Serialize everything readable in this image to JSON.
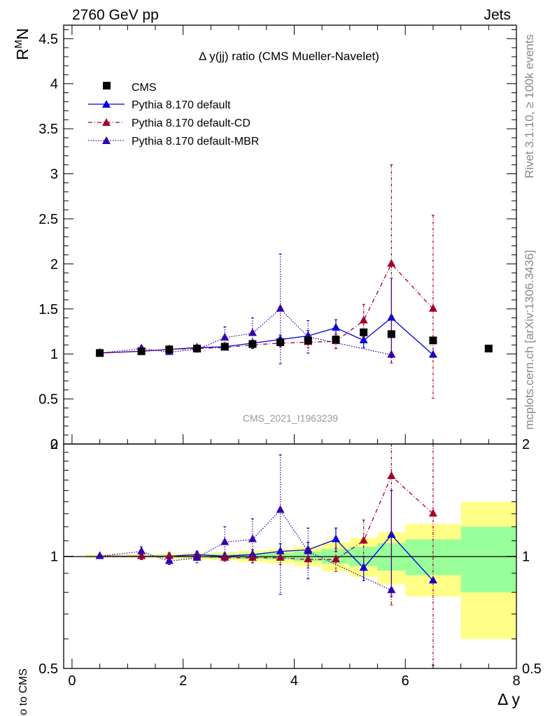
{
  "header": {
    "left": "2760 GeV pp",
    "right": "Jets"
  },
  "side": {
    "rivet": "Rivet 3.1.10, ≥ 100k events",
    "mcplots": "mcplots.cern.ch [arXiv:1306.3436]"
  },
  "chart_data": [
    {
      "type": "line",
      "panel": "main",
      "title": "Δ y(jj) ratio (CMS Mueller-Navelet)",
      "ylabel_main": "R",
      "ylabel_sup": "M",
      "ylabel_sub": "N",
      "watermark": "CMS_2021_I1963239",
      "xlim": [
        -0.15,
        8.0
      ],
      "ylim": [
        0,
        4.65
      ],
      "yticks": [
        0,
        0.5,
        1,
        1.5,
        2,
        2.5,
        3,
        3.5,
        4,
        4.5
      ],
      "ytick_labels": [
        "0",
        "0.5",
        "1",
        "1.5",
        "2",
        "2.5",
        "3",
        "3.5",
        "4",
        "4.5"
      ],
      "legend_position": "top-left",
      "series": [
        {
          "name": "CMS",
          "style": "data",
          "color": "#000000",
          "x": [
            0.5,
            1.25,
            1.75,
            2.25,
            2.75,
            3.25,
            3.75,
            4.25,
            4.75,
            5.25,
            5.75,
            6.5,
            7.5
          ],
          "y": [
            1.01,
            1.03,
            1.05,
            1.06,
            1.08,
            1.11,
            1.13,
            1.15,
            1.16,
            1.24,
            1.22,
            1.15,
            1.06
          ]
        },
        {
          "name": "Pythia 8.170 default",
          "style": "solid",
          "color": "#0000dd",
          "x": [
            0.5,
            1.25,
            1.75,
            2.25,
            2.75,
            3.25,
            3.75,
            4.25,
            4.75,
            5.25,
            5.75,
            6.5
          ],
          "y": [
            1.01,
            1.03,
            1.05,
            1.07,
            1.08,
            1.12,
            1.16,
            1.2,
            1.29,
            1.15,
            1.4,
            0.99
          ],
          "err": [
            0.01,
            0.02,
            0.02,
            0.02,
            0.02,
            0.03,
            0.05,
            0.06,
            0.09,
            0.08,
            0.44,
            0.0
          ]
        },
        {
          "name": "Pythia 8.170 default-CD",
          "style": "dashdot",
          "color": "#a5002a",
          "x": [
            0.5,
            1.25,
            1.75,
            2.25,
            2.75,
            3.25,
            3.75,
            4.25,
            4.75,
            5.25,
            5.75,
            6.5
          ],
          "y": [
            1.01,
            1.03,
            1.05,
            1.06,
            1.07,
            1.1,
            1.12,
            1.13,
            1.14,
            1.37,
            2.0,
            1.5
          ],
          "err": [
            0.01,
            0.02,
            0.02,
            0.02,
            0.02,
            0.03,
            0.04,
            0.06,
            0.08,
            0.18,
            1.1,
            1.04
          ]
        },
        {
          "name": "Pythia 8.170 default-MBR",
          "style": "dotted",
          "color": "#3300aa",
          "x": [
            0.5,
            1.25,
            1.75,
            2.25,
            2.75,
            3.25,
            3.75,
            4.25,
            5.75
          ],
          "y": [
            1.01,
            1.06,
            1.02,
            1.05,
            1.18,
            1.23,
            1.5,
            1.19,
            0.99
          ],
          "err": [
            0.01,
            0.03,
            0.02,
            0.03,
            0.12,
            0.17,
            0.61,
            0.18,
            0.0
          ]
        }
      ]
    },
    {
      "type": "line",
      "panel": "ratio",
      "ylabel": "Ratio to CMS",
      "xlabel": "Δ y",
      "xlim": [
        -0.15,
        8.0
      ],
      "ylim": [
        0.5,
        2.0
      ],
      "xticks": [
        0,
        2,
        4,
        6,
        8
      ],
      "xtick_labels": [
        "0",
        "2",
        "4",
        "6",
        "8"
      ],
      "yticks": [
        0.5,
        1,
        2
      ],
      "ytick_labels": [
        "0.5",
        "1",
        "2"
      ],
      "bands": {
        "edges": [
          0.25,
          1.0,
          1.5,
          2.0,
          2.5,
          3.0,
          3.5,
          4.0,
          4.5,
          5.0,
          5.5,
          6.0,
          7.0,
          8.0
        ],
        "inner": [
          0.005,
          0.006,
          0.008,
          0.01,
          0.012,
          0.016,
          0.02,
          0.03,
          0.045,
          0.06,
          0.085,
          0.11,
          0.2
        ],
        "outer": [
          0.01,
          0.012,
          0.016,
          0.02,
          0.025,
          0.035,
          0.045,
          0.06,
          0.09,
          0.12,
          0.16,
          0.22,
          0.4
        ]
      },
      "series": [
        {
          "name": "Pythia 8.170 default",
          "color": "#0000dd",
          "x": [
            0.5,
            1.25,
            1.75,
            2.25,
            2.75,
            3.25,
            3.75,
            4.25,
            4.75,
            5.25,
            5.75,
            6.5
          ],
          "y": [
            1.0,
            1.0,
            1.0,
            1.01,
            1.0,
            1.01,
            1.03,
            1.04,
            1.11,
            0.93,
            1.14,
            0.86
          ],
          "err": [
            0.01,
            0.02,
            0.02,
            0.02,
            0.02,
            0.03,
            0.05,
            0.05,
            0.08,
            0.07,
            0.36,
            0.0
          ]
        },
        {
          "name": "Pythia 8.170 default-CD",
          "color": "#a5002a",
          "x": [
            0.5,
            1.25,
            1.75,
            2.25,
            2.75,
            3.25,
            3.75,
            4.25,
            4.75,
            5.25,
            5.75,
            6.5
          ],
          "y": [
            1.0,
            1.0,
            1.0,
            1.0,
            0.99,
            0.99,
            0.99,
            0.98,
            0.98,
            1.1,
            1.64,
            1.3
          ],
          "err": [
            0.01,
            0.02,
            0.02,
            0.02,
            0.02,
            0.03,
            0.04,
            0.05,
            0.07,
            0.15,
            0.9,
            0.9
          ]
        },
        {
          "name": "Pythia 8.170 default-MBR",
          "color": "#3300aa",
          "x": [
            0.5,
            1.25,
            1.75,
            2.25,
            2.75,
            3.25,
            3.75,
            4.25,
            5.75
          ],
          "y": [
            1.0,
            1.03,
            0.97,
            0.99,
            1.09,
            1.11,
            1.33,
            1.03,
            0.81
          ],
          "err": [
            0.01,
            0.03,
            0.02,
            0.03,
            0.11,
            0.15,
            0.54,
            0.16,
            0.0
          ]
        }
      ]
    }
  ]
}
